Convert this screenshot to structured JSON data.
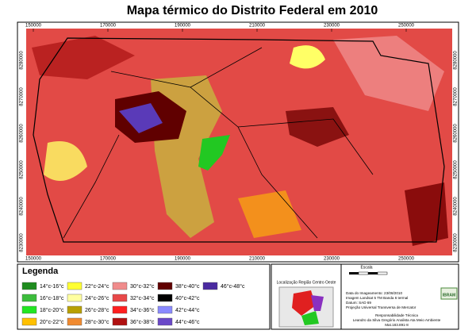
{
  "title": "Mapa térmico do Distrito Federal em 2010",
  "map": {
    "x_coords": [
      "150000",
      "170000",
      "190000",
      "210000",
      "230000",
      "250000"
    ],
    "y_coords": [
      "8280000",
      "8270000",
      "8260000",
      "8250000",
      "8240000",
      "8230000"
    ]
  },
  "legend": {
    "title": "Legenda",
    "items": [
      {
        "label": "14°c-16°c",
        "color": "#1e8c1e"
      },
      {
        "label": "16°c-18°c",
        "color": "#3cbc3c"
      },
      {
        "label": "18°c-20°c",
        "color": "#22e622"
      },
      {
        "label": "20°c-22°c",
        "color": "#ffc000"
      },
      {
        "label": "22°c-24°c",
        "color": "#ffff33"
      },
      {
        "label": "24°c-26°c",
        "color": "#ffffa0"
      },
      {
        "label": "26°c-28°c",
        "color": "#b8a000"
      },
      {
        "label": "28°c-30°c",
        "color": "#f08a30"
      },
      {
        "label": "30°c-32°c",
        "color": "#f08c8c"
      },
      {
        "label": "32°c-34°c",
        "color": "#e84848"
      },
      {
        "label": "34°c-36°c",
        "color": "#ff2020"
      },
      {
        "label": "36°c-38°c",
        "color": "#b01010"
      },
      {
        "label": "38°c-40°c",
        "color": "#600000"
      },
      {
        "label": "40°c-42°c",
        "color": "#000000"
      },
      {
        "label": "42°c-44°c",
        "color": "#8a8aff"
      },
      {
        "label": "44°c-46°c",
        "color": "#6a48c8"
      },
      {
        "label": "46°c-48°c",
        "color": "#4a2aa0"
      }
    ]
  },
  "scale": {
    "title": "Escala"
  },
  "location": {
    "title": "Localização Região Centro Oeste"
  },
  "info": {
    "lines": [
      "Data do Imageamento: 23/08/2010",
      "Imagem Landsat 5 TM Banda 6 termal",
      "Datum: SAD 69",
      "Projeção Universal Transversa de Mercator"
    ],
    "credits": [
      "Responsabilidade Técnica",
      "Leandro da Silva Gregório Analista Ata Meio Ambiente",
      "Mat.183.891-8"
    ],
    "logo": "IBRAM"
  }
}
